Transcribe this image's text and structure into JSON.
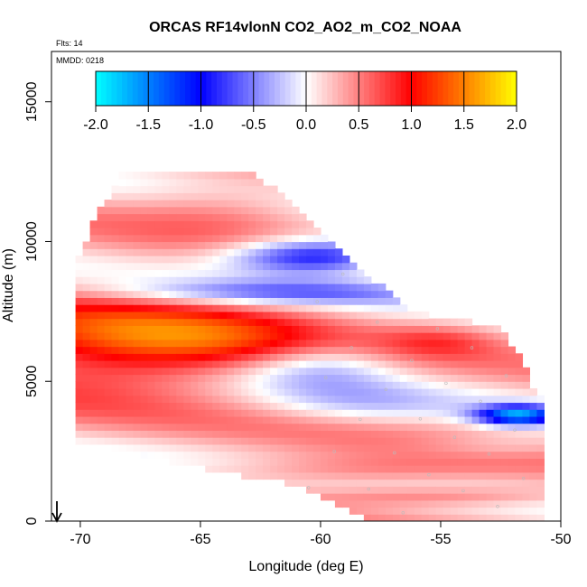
{
  "chart_data": {
    "type": "heatmap",
    "title": "ORCAS RF14vlonN CO2_AO2_m_CO2_NOAA",
    "flights_label": "Flts: 14",
    "date_label": "MMDD: 0218",
    "xlabel": "Longitude (deg E)",
    "ylabel": "Altitude (m)",
    "xlim": [
      -71.2,
      -50
    ],
    "ylim": [
      0,
      16800
    ],
    "xticks": [
      -70,
      -65,
      -60,
      -55,
      -50
    ],
    "yticks": [
      0,
      5000,
      10000,
      15000
    ],
    "colorbar": {
      "range": [
        -2.0,
        2.0
      ],
      "ticks": [
        "-2.0",
        "-1.5",
        "-1.0",
        "-0.5",
        "0.0",
        "0.5",
        "1.0",
        "1.5",
        "2.0"
      ],
      "stops": [
        {
          "v": -2.0,
          "color": "#00ffff"
        },
        {
          "v": -1.0,
          "color": "#0000ff"
        },
        {
          "v": 0.0,
          "color": "#ffffff"
        },
        {
          "v": 1.0,
          "color": "#ff0000"
        },
        {
          "v": 2.0,
          "color": "#ffff00"
        }
      ]
    },
    "domain": {
      "top_boundary": [
        [
          -70.2,
          9000
        ],
        [
          -69.5,
          10500
        ],
        [
          -68.2,
          12500
        ],
        [
          -62.9,
          12500
        ],
        [
          -57.5,
          8300
        ],
        [
          -56.1,
          7400
        ],
        [
          -55.5,
          7200
        ],
        [
          -52.7,
          6900
        ],
        [
          -51.5,
          5600
        ],
        [
          -51.1,
          4400
        ]
      ],
      "bottom_boundary": [
        [
          -70.2,
          3000
        ],
        [
          -66,
          2200
        ],
        [
          -61,
          1400
        ],
        [
          -57.6,
          0
        ],
        [
          -50.8,
          0
        ]
      ],
      "east_boundary": [
        [
          -51.1,
          4400
        ],
        [
          -51.0,
          1500
        ],
        [
          -50.8,
          0
        ]
      ]
    },
    "field_anomalies": [
      {
        "center": [
          -69.0,
          6300
        ],
        "size": [
          6.0,
          1700
        ],
        "value": 0.85
      },
      {
        "center": [
          -64.0,
          6500
        ],
        "size": [
          5.5,
          1300
        ],
        "value": 0.55
      },
      {
        "center": [
          -55.0,
          6500
        ],
        "size": [
          2.5,
          600
        ],
        "value": 0.4
      },
      {
        "center": [
          -61.5,
          8200
        ],
        "size": [
          7.0,
          450
        ],
        "value": -0.7
      },
      {
        "center": [
          -60.2,
          9500
        ],
        "size": [
          3.5,
          650
        ],
        "value": -1.35
      },
      {
        "center": [
          -60.0,
          5600
        ],
        "size": [
          3.3,
          900
        ],
        "value": -0.6
      },
      {
        "center": [
          -51.8,
          3800
        ],
        "size": [
          1.7,
          350
        ],
        "value": -1.7
      },
      {
        "center": [
          -52.5,
          2700
        ],
        "size": [
          3.5,
          450
        ],
        "value": -0.25
      },
      {
        "center": [
          -58.5,
          4200
        ],
        "size": [
          4.0,
          700
        ],
        "value": -0.3
      },
      {
        "center": [
          -64.0,
          11300
        ],
        "size": [
          4.0,
          1000
        ],
        "value": 0.3
      },
      {
        "center": [
          -59.0,
          1800
        ],
        "size": [
          6.0,
          550
        ],
        "value": 0.4
      },
      {
        "center": [
          -55.0,
          900
        ],
        "size": [
          6.0,
          350
        ],
        "value": 0.45
      }
    ],
    "base_value": 0.25,
    "layer_amplitude": 0.3
  }
}
